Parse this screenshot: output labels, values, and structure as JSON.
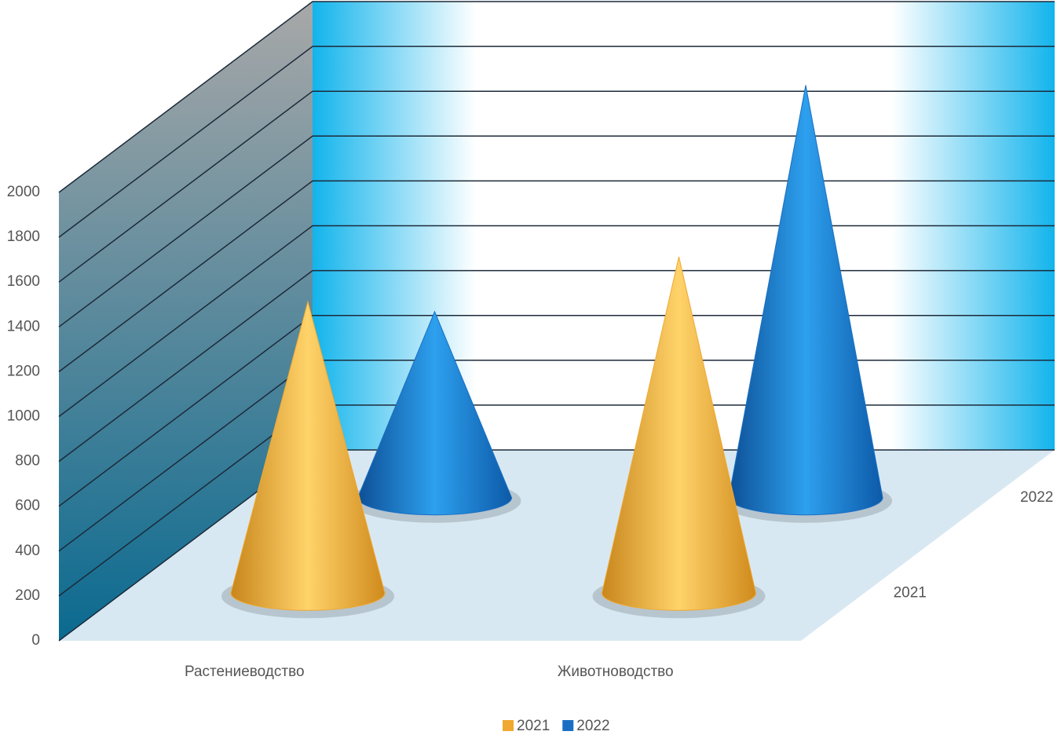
{
  "chart_data": {
    "type": "cone3d",
    "categories": [
      "Растениеводство",
      "Животноводство"
    ],
    "series": [
      {
        "name": "2021",
        "color": "#f0a830",
        "values": [
          1300,
          1500
        ]
      },
      {
        "name": "2022",
        "color": "#1a6fc4",
        "values": [
          830,
          1840
        ]
      }
    ],
    "ylim": [
      0,
      2000
    ],
    "yticks": [
      0,
      200,
      400,
      600,
      800,
      1000,
      1200,
      1400,
      1600,
      1800,
      2000
    ],
    "grid": true
  }
}
